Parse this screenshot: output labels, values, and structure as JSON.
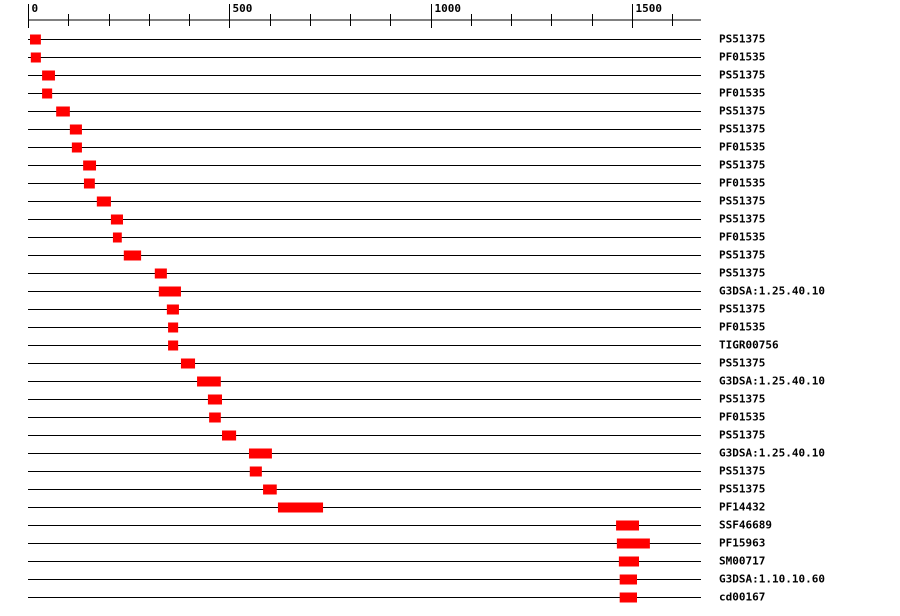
{
  "chart_data": {
    "type": "range",
    "categories": [
      "PS51375",
      "PF01535",
      "PS51375",
      "PF01535",
      "PS51375",
      "PS51375",
      "PF01535",
      "PS51375",
      "PF01535",
      "PS51375",
      "PS51375",
      "PF01535",
      "PS51375",
      "PS51375",
      "G3DSA:1.25.40.10",
      "PS51375",
      "PF01535",
      "TIGR00756",
      "PS51375",
      "G3DSA:1.25.40.10",
      "PS51375",
      "PF01535",
      "PS51375",
      "G3DSA:1.25.40.10",
      "PS51375",
      "PS51375",
      "PF14432",
      "SSF46689",
      "PF15963",
      "SM00717",
      "G3DSA:1.10.10.60",
      "cd00167"
    ],
    "starts": [
      5,
      7,
      35,
      35,
      70,
      104,
      109,
      137,
      139,
      171,
      206,
      211,
      238,
      315,
      325,
      345,
      348,
      348,
      380,
      420,
      447,
      450,
      482,
      549,
      551,
      584,
      621,
      1461,
      1463,
      1468,
      1470,
      1470
    ],
    "ends": [
      32,
      32,
      67,
      60,
      104,
      134,
      134,
      169,
      166,
      206,
      236,
      233,
      281,
      345,
      380,
      375,
      373,
      373,
      415,
      479,
      482,
      479,
      517,
      606,
      581,
      618,
      733,
      1518,
      1545,
      1518,
      1513,
      1513
    ],
    "color": "#ff0000",
    "xlim": [
      0,
      1672
    ],
    "xticks": [
      0,
      500,
      1000,
      1500
    ],
    "xminorticks": [
      100,
      200,
      300,
      400,
      600,
      700,
      800,
      900,
      1100,
      1200,
      1300,
      1400,
      1600
    ]
  }
}
